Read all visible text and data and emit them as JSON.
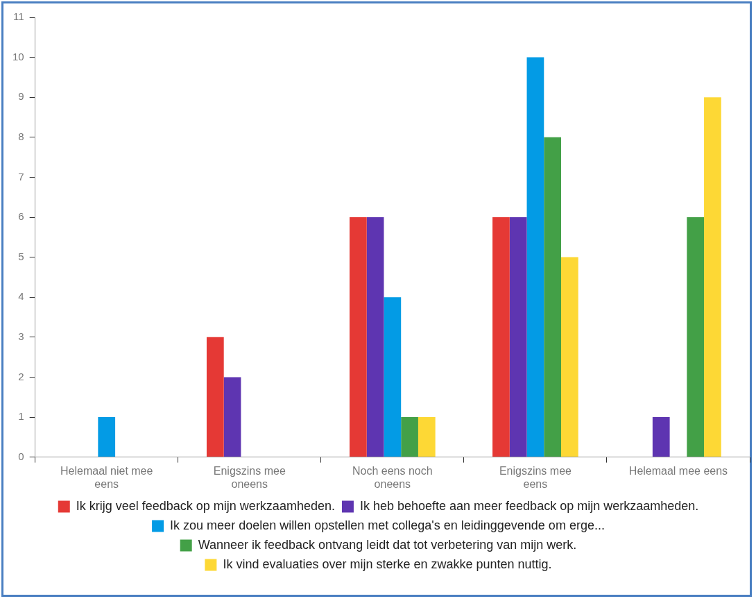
{
  "chart_data": {
    "type": "bar",
    "categories": [
      "Helemaal niet mee eens",
      "Enigszins mee oneens",
      "Noch eens noch oneens",
      "Enigszins mee eens",
      "Helemaal mee eens"
    ],
    "series": [
      {
        "name": "Ik krijg veel feedback op mijn werkzaamheden.",
        "color": "#e53935",
        "values": [
          0,
          3,
          6,
          6,
          0
        ]
      },
      {
        "name": "Ik heb behoefte aan meer feedback op mijn werkzaamheden.",
        "color": "#5e35b1",
        "values": [
          0,
          2,
          6,
          6,
          1
        ]
      },
      {
        "name": "Ik zou meer doelen willen opstellen met collega's en leidinggevende om erge...",
        "color": "#039be5",
        "values": [
          1,
          0,
          4,
          10,
          0
        ]
      },
      {
        "name": "Wanneer ik feedback ontvang leidt dat tot verbetering van mijn werk.",
        "color": "#43a047",
        "values": [
          0,
          0,
          1,
          8,
          6
        ]
      },
      {
        "name": "Ik vind evaluaties over mijn sterke en zwakke punten nuttig.",
        "color": "#fdd835",
        "values": [
          0,
          0,
          1,
          5,
          9
        ]
      }
    ],
    "ylim": [
      0,
      11
    ],
    "yticks": [
      0,
      1,
      2,
      3,
      4,
      5,
      6,
      7,
      8,
      9,
      10,
      11
    ],
    "grid": false,
    "legend": "bottom"
  }
}
